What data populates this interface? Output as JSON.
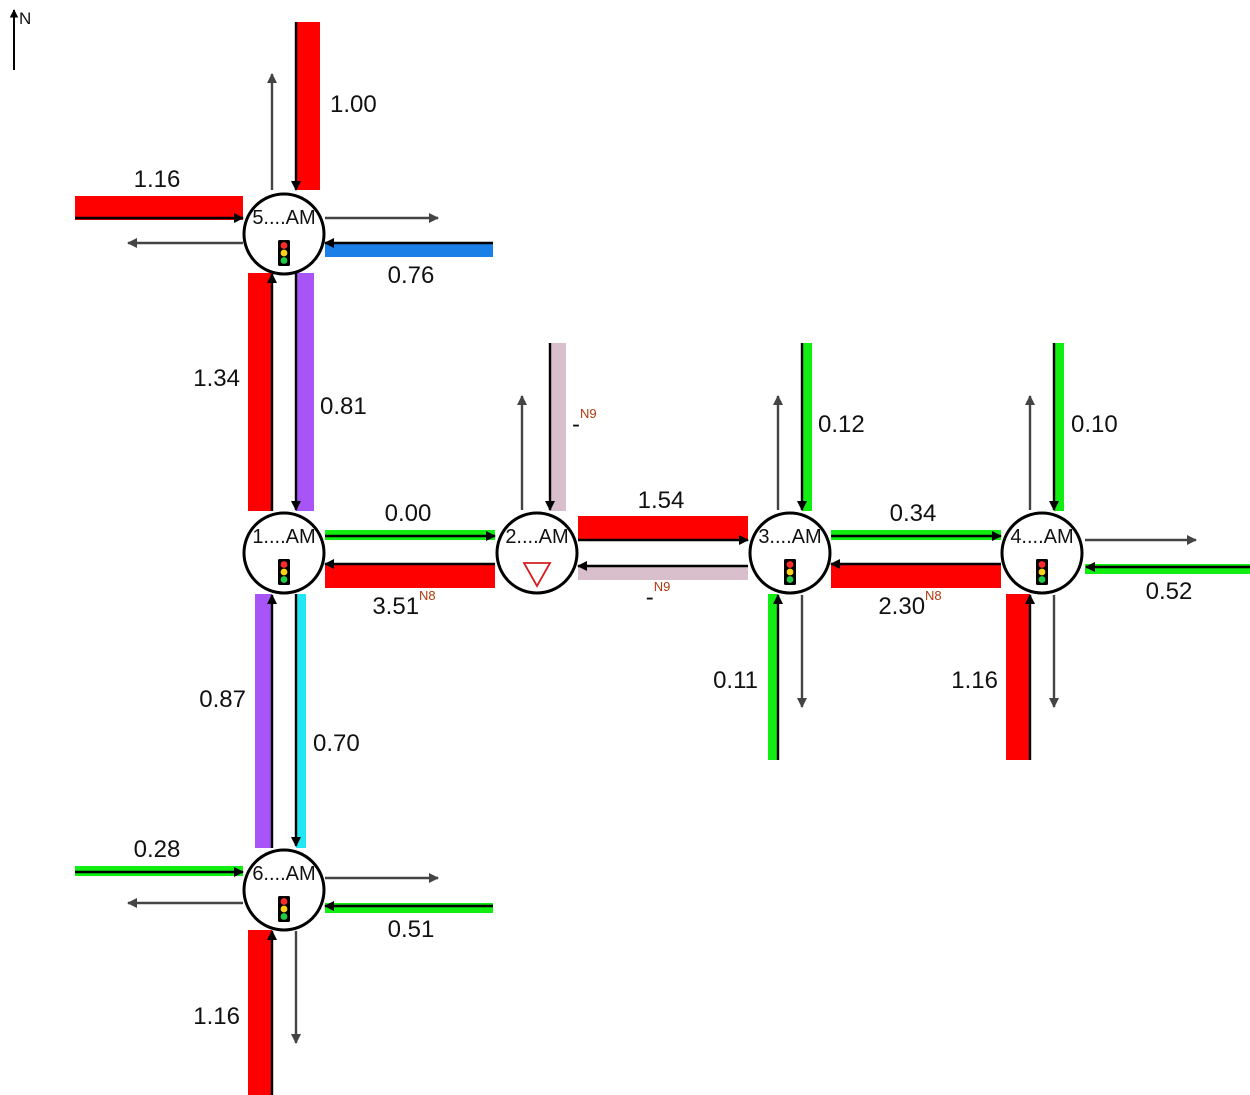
{
  "north_label": "N",
  "colors": {
    "red": "#ff0000",
    "blue": "#1a7fe6",
    "purple": "#a855f7",
    "green": "#11ee11",
    "cyan": "#22e6f2",
    "mauve": "#d8bfcb",
    "arrow": "#444444",
    "black": "#000000"
  },
  "nodes": [
    {
      "id": "n5",
      "label": "5....AM",
      "type": "signal"
    },
    {
      "id": "n1",
      "label": "1....AM",
      "type": "signal"
    },
    {
      "id": "n2",
      "label": "2....AM",
      "type": "yield"
    },
    {
      "id": "n3",
      "label": "3....AM",
      "type": "signal"
    },
    {
      "id": "n4",
      "label": "4....AM",
      "type": "signal"
    },
    {
      "id": "n6",
      "label": "6....AM",
      "type": "signal"
    }
  ],
  "links": [
    {
      "id": "n5-north-in",
      "value": "1.00",
      "color": "red",
      "note": ""
    },
    {
      "id": "n5-west-in",
      "value": "1.16",
      "color": "red",
      "note": ""
    },
    {
      "id": "n5-east-in",
      "value": "0.76",
      "color": "blue",
      "note": ""
    },
    {
      "id": "n1-n5-northbound",
      "value": "1.34",
      "color": "red",
      "note": ""
    },
    {
      "id": "n5-n1-southbound",
      "value": "0.81",
      "color": "purple",
      "note": ""
    },
    {
      "id": "n1-n2-eastbound",
      "value": "0.00",
      "color": "green",
      "note": ""
    },
    {
      "id": "n2-n1-westbound",
      "value": "3.51",
      "color": "red",
      "note": "N8"
    },
    {
      "id": "n2-north-in",
      "value": "-",
      "color": "mauve",
      "note": "N9"
    },
    {
      "id": "n2-n3-eastbound",
      "value": "1.54",
      "color": "red",
      "note": ""
    },
    {
      "id": "n3-n2-westbound",
      "value": "-",
      "color": "mauve",
      "note": "N9"
    },
    {
      "id": "n3-north-in",
      "value": "0.12",
      "color": "green",
      "note": ""
    },
    {
      "id": "n3-south-in",
      "value": "0.11",
      "color": "green",
      "note": ""
    },
    {
      "id": "n3-n4-eastbound",
      "value": "0.34",
      "color": "green",
      "note": ""
    },
    {
      "id": "n4-n3-westbound",
      "value": "2.30",
      "color": "red",
      "note": "N8"
    },
    {
      "id": "n4-north-in",
      "value": "0.10",
      "color": "green",
      "note": ""
    },
    {
      "id": "n4-east-in",
      "value": "0.52",
      "color": "green",
      "note": ""
    },
    {
      "id": "n4-south-in",
      "value": "1.16",
      "color": "red",
      "note": ""
    },
    {
      "id": "n6-n1-northbound",
      "value": "0.87",
      "color": "purple",
      "note": ""
    },
    {
      "id": "n1-n6-southbound",
      "value": "0.70",
      "color": "cyan",
      "note": ""
    },
    {
      "id": "n6-west-in",
      "value": "0.28",
      "color": "green",
      "note": ""
    },
    {
      "id": "n6-east-in",
      "value": "0.51",
      "color": "green",
      "note": ""
    },
    {
      "id": "n6-south-in",
      "value": "1.16",
      "color": "red",
      "note": ""
    }
  ]
}
